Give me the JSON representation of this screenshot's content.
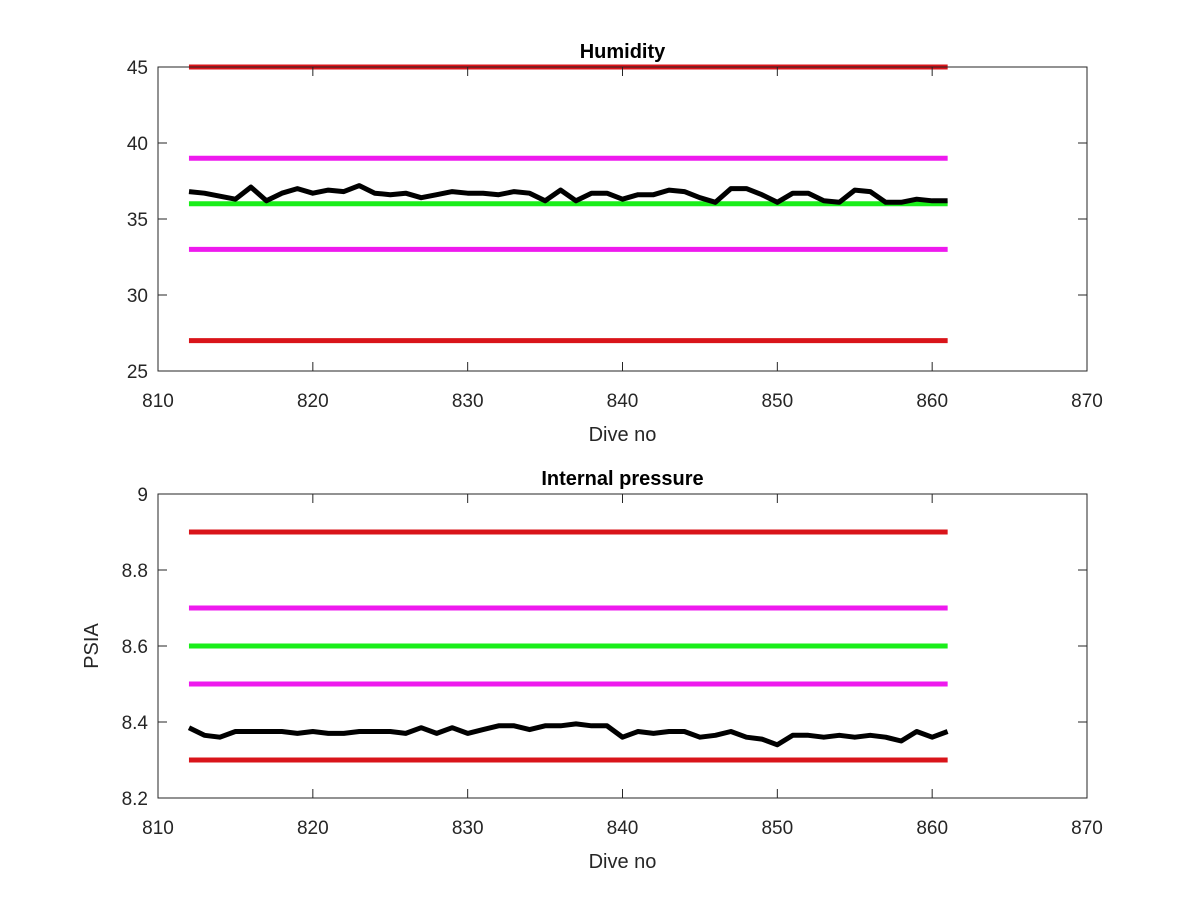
{
  "chart_data": [
    {
      "type": "line",
      "title": "Humidity",
      "xlabel": "Dive no",
      "ylabel": "",
      "xlim": [
        810,
        870
      ],
      "ylim": [
        25,
        45
      ],
      "xticks": [
        810,
        820,
        830,
        840,
        850,
        860,
        870
      ],
      "yticks": [
        25,
        30,
        35,
        40,
        45
      ],
      "grid": false,
      "reference_lines": [
        {
          "y": 45,
          "x_range": [
            812,
            861
          ],
          "color": "#d9141a"
        },
        {
          "y": 39,
          "x_range": [
            812,
            861
          ],
          "color": "#ee1aee"
        },
        {
          "y": 36,
          "x_range": [
            812,
            861
          ],
          "color": "#1aee1a"
        },
        {
          "y": 33,
          "x_range": [
            812,
            861
          ],
          "color": "#ee1aee"
        },
        {
          "y": 27,
          "x_range": [
            812,
            861
          ],
          "color": "#d9141a"
        }
      ],
      "series": [
        {
          "color": "#000000",
          "x": [
            812,
            813,
            814,
            815,
            816,
            817,
            818,
            819,
            820,
            821,
            822,
            823,
            824,
            825,
            826,
            827,
            828,
            829,
            830,
            831,
            832,
            833,
            834,
            835,
            836,
            837,
            838,
            839,
            840,
            841,
            842,
            843,
            844,
            845,
            846,
            847,
            848,
            849,
            850,
            851,
            852,
            853,
            854,
            855,
            856,
            857,
            858,
            859,
            860,
            861
          ],
          "y": [
            36.8,
            36.7,
            36.5,
            36.3,
            37.1,
            36.2,
            36.7,
            37.0,
            36.7,
            36.9,
            36.8,
            37.2,
            36.7,
            36.6,
            36.7,
            36.4,
            36.6,
            36.8,
            36.7,
            36.7,
            36.6,
            36.8,
            36.7,
            36.2,
            36.9,
            36.2,
            36.7,
            36.7,
            36.3,
            36.6,
            36.6,
            36.9,
            36.8,
            36.4,
            36.1,
            37.0,
            37.0,
            36.6,
            36.1,
            36.7,
            36.7,
            36.2,
            36.1,
            36.9,
            36.8,
            36.1,
            36.1,
            36.3,
            36.2,
            36.2
          ]
        }
      ]
    },
    {
      "type": "line",
      "title": "Internal pressure",
      "xlabel": "Dive no",
      "ylabel": "PSIA",
      "xlim": [
        810,
        870
      ],
      "ylim": [
        8.2,
        9.0
      ],
      "xticks": [
        810,
        820,
        830,
        840,
        850,
        860,
        870
      ],
      "yticks": [
        8.2,
        8.4,
        8.6,
        8.8,
        9.0
      ],
      "ytick_labels": [
        "8.2",
        "8.4",
        "8.6",
        "8.8",
        "9"
      ],
      "grid": false,
      "reference_lines": [
        {
          "y": 8.9,
          "x_range": [
            812,
            861
          ],
          "color": "#d9141a"
        },
        {
          "y": 8.7,
          "x_range": [
            812,
            861
          ],
          "color": "#ee1aee"
        },
        {
          "y": 8.6,
          "x_range": [
            812,
            861
          ],
          "color": "#1aee1a"
        },
        {
          "y": 8.5,
          "x_range": [
            812,
            861
          ],
          "color": "#ee1aee"
        },
        {
          "y": 8.3,
          "x_range": [
            812,
            861
          ],
          "color": "#d9141a"
        }
      ],
      "series": [
        {
          "color": "#000000",
          "x": [
            812,
            813,
            814,
            815,
            816,
            817,
            818,
            819,
            820,
            821,
            822,
            823,
            824,
            825,
            826,
            827,
            828,
            829,
            830,
            831,
            832,
            833,
            834,
            835,
            836,
            837,
            838,
            839,
            840,
            841,
            842,
            843,
            844,
            845,
            846,
            847,
            848,
            849,
            850,
            851,
            852,
            853,
            854,
            855,
            856,
            857,
            858,
            859,
            860,
            861
          ],
          "y": [
            8.385,
            8.365,
            8.36,
            8.375,
            8.375,
            8.375,
            8.375,
            8.37,
            8.375,
            8.37,
            8.37,
            8.375,
            8.375,
            8.375,
            8.37,
            8.385,
            8.37,
            8.385,
            8.37,
            8.38,
            8.39,
            8.39,
            8.38,
            8.39,
            8.39,
            8.395,
            8.39,
            8.39,
            8.36,
            8.375,
            8.37,
            8.375,
            8.375,
            8.36,
            8.365,
            8.375,
            8.36,
            8.355,
            8.34,
            8.365,
            8.365,
            8.36,
            8.365,
            8.36,
            8.365,
            8.36,
            8.35,
            8.375,
            8.36,
            8.375
          ]
        }
      ]
    }
  ]
}
